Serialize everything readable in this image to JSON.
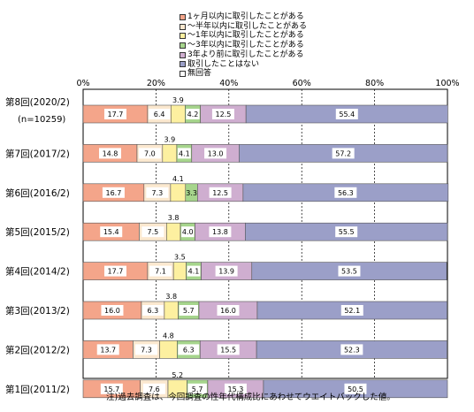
{
  "chart_data": {
    "type": "bar",
    "orientation": "horizontal",
    "stacked": true,
    "categories": [
      {
        "label": "第8回(2020/2)",
        "sublabel": "(n=10259)"
      },
      {
        "label": "第7回(2017/2)"
      },
      {
        "label": "第6回(2016/2)"
      },
      {
        "label": "第5回(2015/2)"
      },
      {
        "label": "第4回(2014/2)"
      },
      {
        "label": "第3回(2013/2)"
      },
      {
        "label": "第2回(2012/2)"
      },
      {
        "label": "第1回(2011/2)"
      }
    ],
    "series": [
      {
        "name": "1ヶ月以内に取引したことがある",
        "color": "#f4a58a",
        "values": [
          17.7,
          14.8,
          16.7,
          15.4,
          17.7,
          16.0,
          13.7,
          15.7
        ]
      },
      {
        "name": "～半年以内に取引したことがある",
        "color": "#fbe8cf",
        "values": [
          6.4,
          7.0,
          7.3,
          7.5,
          7.1,
          6.3,
          7.3,
          7.6
        ]
      },
      {
        "name": "～1年以内に取引したことがある",
        "color": "#fdf0a0",
        "values": [
          3.9,
          3.9,
          4.1,
          3.8,
          3.5,
          3.8,
          4.8,
          5.2
        ]
      },
      {
        "name": "～3年以内に取引したことがある",
        "color": "#a6d58c",
        "values": [
          4.2,
          4.1,
          3.3,
          4.0,
          4.1,
          5.7,
          6.3,
          5.7
        ]
      },
      {
        "name": "3年より前に取引したことがある",
        "color": "#cfaed0",
        "values": [
          12.5,
          13.0,
          12.5,
          13.8,
          13.9,
          16.0,
          15.5,
          15.3
        ]
      },
      {
        "name": "取引したことはない",
        "color": "#9b9fc8",
        "values": [
          55.4,
          57.2,
          56.3,
          55.5,
          53.5,
          52.1,
          52.3,
          50.5
        ]
      },
      {
        "name": "無回答",
        "color": "#ffffff",
        "values": [
          0,
          0,
          0,
          0,
          0,
          0,
          0,
          0
        ]
      }
    ],
    "xticks": [
      "0%",
      "20%",
      "40%",
      "60%",
      "80%",
      "100%"
    ],
    "xlim": [
      0,
      100
    ],
    "value_labels_above": [
      0,
      0,
      1,
      0,
      0,
      0,
      0
    ]
  },
  "note": "注)過去調査は、今回調査の性年代構成比にあわせてウエイトバックした値。"
}
